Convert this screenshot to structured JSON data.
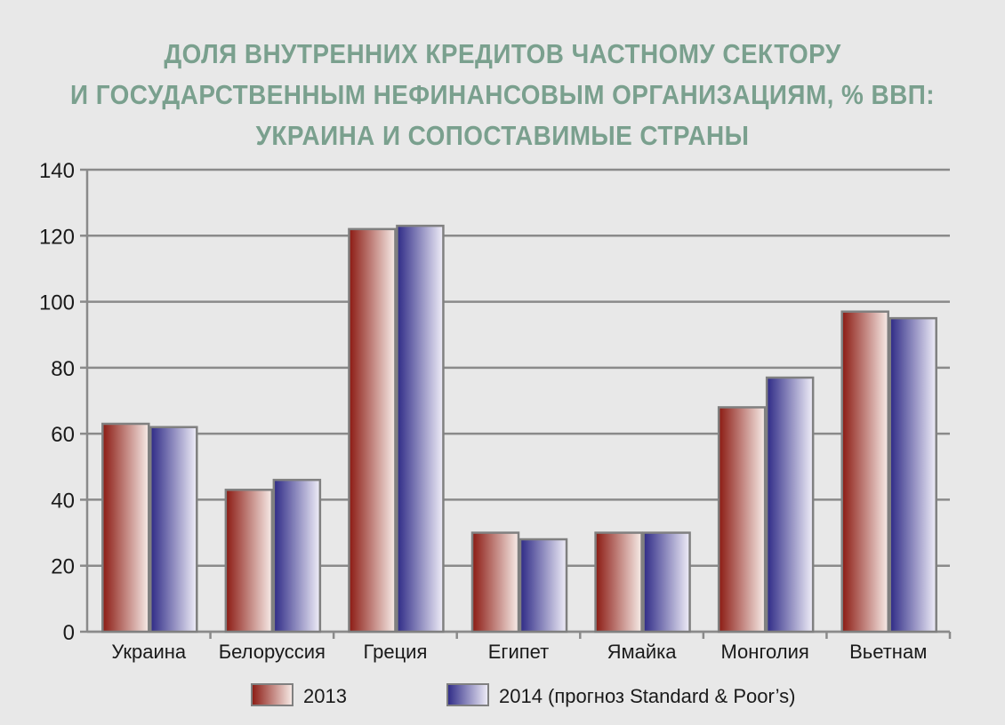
{
  "title_lines": [
    "ДОЛЯ ВНУТРЕННИХ КРЕДИТОВ ЧАСТНОМУ СЕКТОРУ",
    "И ГОСУДАРСТВЕННЫМ НЕФИНАНСОВЫМ ОРГАНИЗАЦИЯМ, % ВВП:",
    "УКРАИНА И СОПОСТАВИМЫЕ СТРАНЫ"
  ],
  "colors": {
    "title": "#7aa08e",
    "series_2013_dark": "#8b1a12",
    "series_2013_light": "#f7ece8",
    "series_2014_dark": "#2e2a86",
    "series_2014_light": "#f0eef8",
    "grid": "#8a8a8a",
    "background": "#e8e8e8"
  },
  "chart_data": {
    "type": "bar",
    "title": "ДОЛЯ ВНУТРЕННИХ КРЕДИТОВ ЧАСТНОМУ СЕКТОРУ И ГОСУДАРСТВЕННЫМ НЕФИНАНСОВЫМ ОРГАНИЗАЦИЯМ, % ВВП: УКРАИНА И СОПОСТАВИМЫЕ СТРАНЫ",
    "categories": [
      "Украина",
      "Белоруссия",
      "Греция",
      "Египет",
      "Ямайка",
      "Монголия",
      "Вьетнам"
    ],
    "series": [
      {
        "name": "2013",
        "values": [
          63,
          43,
          122,
          30,
          30,
          68,
          97
        ]
      },
      {
        "name": "2014 (прогноз Standard & Poor’s)",
        "values": [
          62,
          46,
          123,
          28,
          30,
          77,
          95
        ]
      }
    ],
    "ylim": [
      0,
      140
    ],
    "yticks": [
      0,
      20,
      40,
      60,
      80,
      100,
      120,
      140
    ],
    "grid": true,
    "legend_position": "bottom"
  }
}
